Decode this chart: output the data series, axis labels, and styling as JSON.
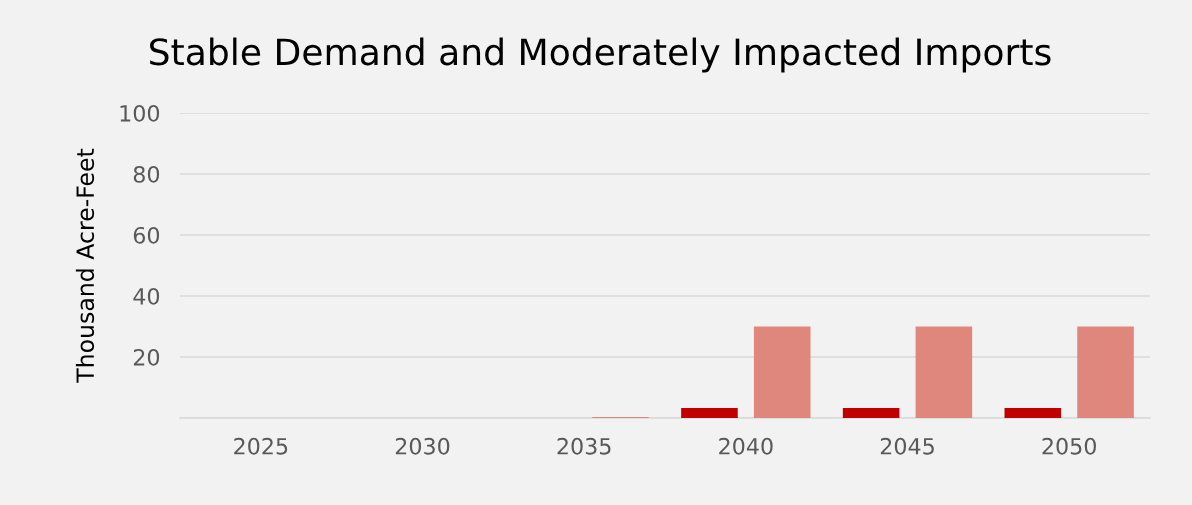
{
  "chart_data": {
    "type": "bar",
    "title": "Stable Demand and Moderately Impacted Imports",
    "ylabel": "Thousand Acre-Feet",
    "categories": [
      "2025",
      "2030",
      "2035",
      "2040",
      "2045",
      "2050"
    ],
    "series": [
      {
        "color": "#c00000",
        "values": [
          0,
          0,
          0,
          3.3,
          3.3,
          3.3
        ]
      },
      {
        "color": "#e0877d",
        "values": [
          0,
          0,
          0.3,
          30,
          30,
          30
        ]
      }
    ],
    "ylim": [
      0,
      100
    ],
    "yticks": [
      {
        "value": 0,
        "label": null
      },
      20,
      40,
      60,
      80,
      100
    ],
    "grid": "y",
    "legend": false
  }
}
